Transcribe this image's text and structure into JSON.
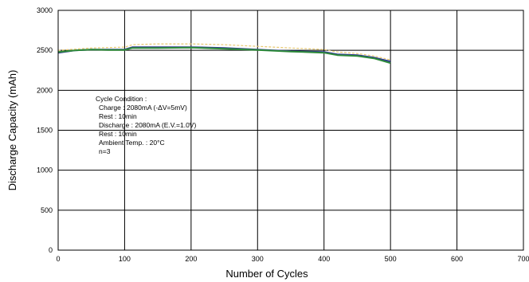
{
  "chart_data": {
    "type": "line",
    "title": "",
    "xlabel": "Number of Cycles",
    "ylabel": "Discharge Capacity (mAh)",
    "xlim": [
      0,
      700
    ],
    "ylim": [
      0,
      3000
    ],
    "xticks": [
      0,
      100,
      200,
      300,
      400,
      500,
      600,
      700
    ],
    "yticks": [
      0,
      500,
      1000,
      1500,
      2000,
      2500,
      3000
    ],
    "grid": true,
    "legend": "none",
    "series": [
      {
        "color": "#2e3a8c",
        "x": [
          0,
          25,
          50,
          75,
          100,
          112,
          150,
          200,
          250,
          300,
          350,
          400,
          420,
          450,
          475,
          500
        ],
        "y": [
          2470,
          2500,
          2510,
          2510,
          2510,
          2540,
          2540,
          2540,
          2530,
          2510,
          2490,
          2480,
          2450,
          2440,
          2410,
          2360
        ]
      },
      {
        "color": "#2e8b3a",
        "x": [
          0,
          25,
          50,
          75,
          100,
          112,
          150,
          200,
          250,
          300,
          350,
          400,
          420,
          450,
          475,
          500
        ],
        "y": [
          2480,
          2500,
          2510,
          2505,
          2505,
          2530,
          2530,
          2535,
          2520,
          2505,
          2485,
          2470,
          2440,
          2430,
          2400,
          2340
        ]
      },
      {
        "color": "#e8c870",
        "dashed": true,
        "x": [
          0,
          25,
          50,
          75,
          100,
          112,
          150,
          200,
          250,
          300,
          350,
          400,
          420,
          450,
          475,
          500
        ],
        "y": [
          2500,
          2515,
          2530,
          2535,
          2540,
          2570,
          2580,
          2580,
          2570,
          2550,
          2530,
          2510,
          2480,
          2460,
          2430,
          2380
        ]
      }
    ],
    "annotation": [
      "Cycle Condition :",
      "Charge : 2080mA (-ΔV=5mV)",
      "Rest : 10min",
      "Discharge : 2080mA (E.V.=1.0V)",
      "Rest : 10min",
      "Ambient Temp. : 20°C",
      "n=3"
    ]
  }
}
